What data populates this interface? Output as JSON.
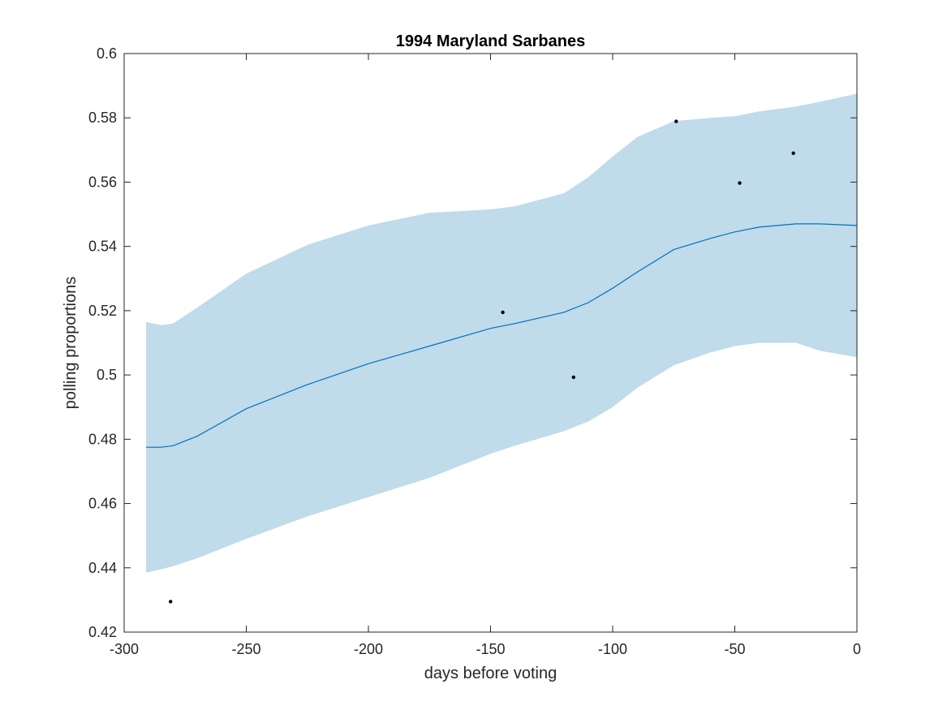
{
  "chart_data": {
    "type": "line",
    "title": "1994 Maryland Sarbanes",
    "xlabel": "days before voting",
    "ylabel": "polling proportions",
    "xlim": [
      -300,
      0
    ],
    "ylim": [
      0.42,
      0.6
    ],
    "xticks": [
      -300,
      -250,
      -200,
      -150,
      -100,
      -50,
      0
    ],
    "xtick_labels": [
      "-300",
      "-250",
      "-200",
      "-150",
      "-100",
      "-50",
      "0"
    ],
    "yticks": [
      0.42,
      0.44,
      0.46,
      0.48,
      0.5,
      0.52,
      0.54,
      0.56,
      0.58,
      0.6
    ],
    "ytick_labels": [
      "0.42",
      "0.44",
      "0.46",
      "0.48",
      "0.5",
      "0.52",
      "0.54",
      "0.56",
      "0.58",
      "0.6"
    ],
    "grid": false,
    "colors": {
      "band": "#c0dbea",
      "line": "#0072bd",
      "points": "#000000",
      "axes": "#262626"
    },
    "series": [
      {
        "kind": "band",
        "x": [
          -291,
          -285,
          -280,
          -270,
          -250,
          -225,
          -200,
          -175,
          -150,
          -140,
          -120,
          -110,
          -100,
          -90,
          -75,
          -60,
          -50,
          -40,
          -25,
          -15,
          0
        ],
        "upper": [
          0.5165,
          0.5155,
          0.516,
          0.521,
          0.5315,
          0.5405,
          0.5465,
          0.5505,
          0.5515,
          0.5525,
          0.5565,
          0.5615,
          0.568,
          0.574,
          0.579,
          0.58,
          0.5805,
          0.582,
          0.5835,
          0.585,
          0.5875
        ],
        "lower": [
          0.4385,
          0.4395,
          0.4405,
          0.443,
          0.449,
          0.456,
          0.462,
          0.468,
          0.4755,
          0.478,
          0.4825,
          0.4855,
          0.49,
          0.496,
          0.503,
          0.507,
          0.509,
          0.51,
          0.51,
          0.5075,
          0.5055
        ]
      },
      {
        "kind": "line",
        "x": [
          -291,
          -285,
          -280,
          -270,
          -250,
          -225,
          -200,
          -175,
          -150,
          -140,
          -120,
          -110,
          -100,
          -90,
          -75,
          -60,
          -50,
          -40,
          -25,
          -15,
          0
        ],
        "y": [
          0.4775,
          0.4775,
          0.478,
          0.481,
          0.4895,
          0.497,
          0.5035,
          0.509,
          0.5145,
          0.516,
          0.5195,
          0.5225,
          0.527,
          0.532,
          0.539,
          0.5425,
          0.5445,
          0.546,
          0.547,
          0.547,
          0.5465
        ]
      },
      {
        "kind": "scatter",
        "x": [
          -281,
          -145,
          -116,
          -74,
          -48,
          -26
        ],
        "y": [
          0.4295,
          0.5195,
          0.4993,
          0.5789,
          0.5597,
          0.569
        ]
      }
    ]
  }
}
